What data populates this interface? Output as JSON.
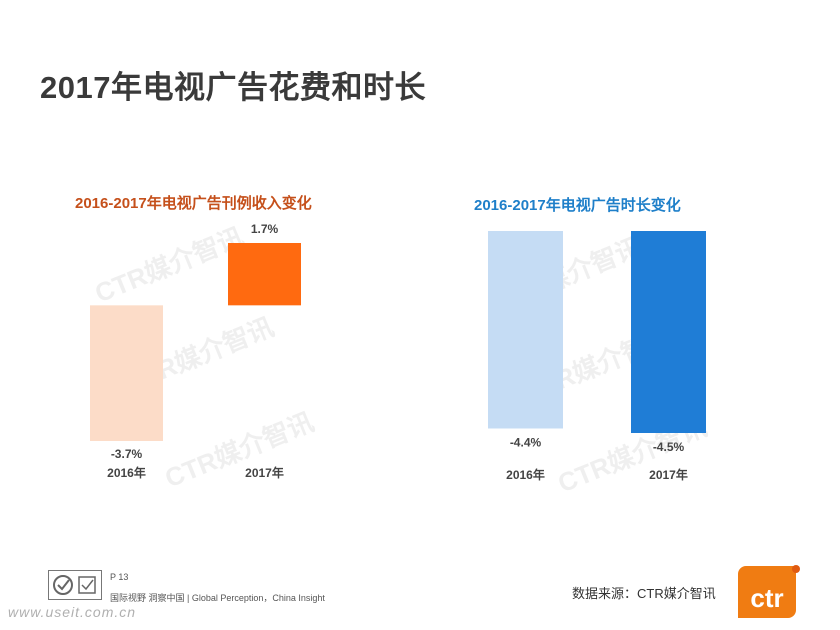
{
  "page": {
    "title": "2017年电视广告花费和时长",
    "page_number": "P 13",
    "slogan": "国际视野 洞察中国 | Global Perception，China Insight",
    "source": "数据来源：CTR媒介智讯",
    "watermark": "CTR媒介智讯",
    "url_watermark": "www.useit.com.cn",
    "brand": "ctr"
  },
  "chart_data": [
    {
      "type": "bar",
      "title": "2016-2017年电视广告刊例收入变化",
      "categories": [
        "2016年",
        "2017年"
      ],
      "values": [
        -3.7,
        1.7
      ],
      "value_labels": [
        "-3.7%",
        "1.7%"
      ],
      "colors": [
        "#fcdcc8",
        "#ff6a10"
      ],
      "title_color": "#c5501b",
      "layout": "waterfall",
      "ylim": [
        -3.7,
        1.7
      ]
    },
    {
      "type": "bar",
      "title": "2016-2017年电视广告时长变化",
      "categories": [
        "2016年",
        "2017年"
      ],
      "values": [
        -4.4,
        -4.5
      ],
      "value_labels": [
        "-4.4%",
        "-4.5%"
      ],
      "colors": [
        "#c5dcf4",
        "#1f7dd6"
      ],
      "title_color": "#1e7fc9",
      "ylim": [
        -4.5,
        0
      ]
    }
  ]
}
